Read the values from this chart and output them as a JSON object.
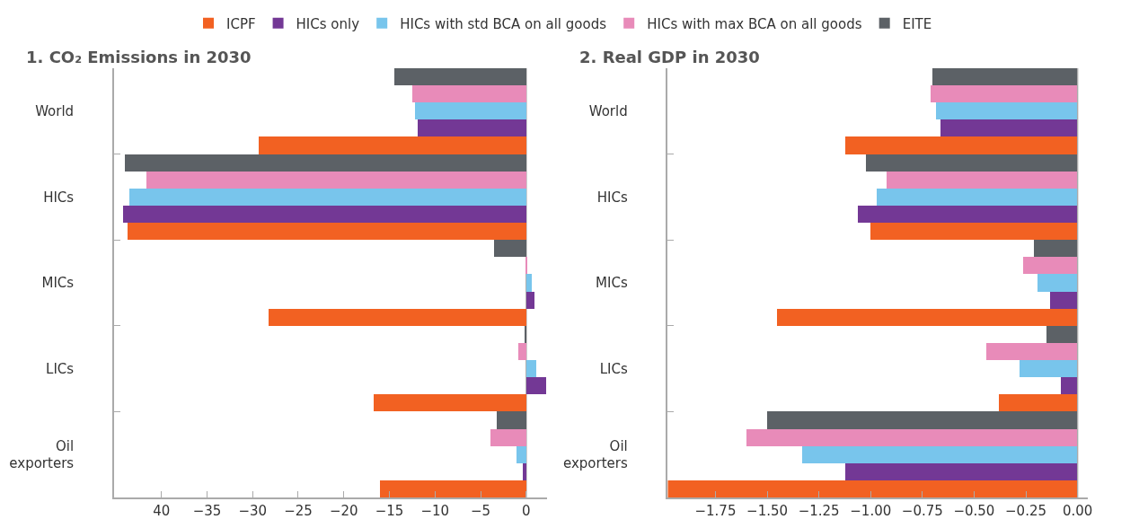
{
  "chart_data": [
    {
      "type": "bar",
      "orientation": "horizontal",
      "title": "1. CO₂ Emissions in 2030",
      "legend": "top",
      "categories": [
        "World",
        "HICs",
        "MICs",
        "LICs",
        "Oil exporters"
      ],
      "series": [
        {
          "name": "ICPF",
          "color": "#f26122",
          "values": [
            -29.3,
            -43.7,
            -28.3,
            -16.7,
            -16.0
          ]
        },
        {
          "name": "HICs only",
          "color": "#733895",
          "values": [
            -11.9,
            -44.2,
            0.9,
            2.2,
            -0.4
          ]
        },
        {
          "name": "HICs with std BCA on all goods",
          "color": "#78c5ec",
          "values": [
            -12.2,
            -43.5,
            0.6,
            1.1,
            -1.1
          ]
        },
        {
          "name": "HICs with max BCA on all goods",
          "color": "#e88bb9",
          "values": [
            -12.5,
            -41.7,
            0.1,
            -0.9,
            -3.9
          ]
        },
        {
          "name": "EITE",
          "color": "#5c6166",
          "values": [
            -14.5,
            -44.0,
            -3.5,
            -0.2,
            -3.2
          ]
        }
      ],
      "ref_lines": [
        {
          "axis": "x",
          "value": 0,
          "color": "#aaaaaa"
        }
      ],
      "xlim": [
        -45.2,
        2.3
      ],
      "xticks": [
        {
          "value": -40,
          "label": "40"
        },
        -35,
        -30,
        -25,
        -20,
        -15,
        -10,
        -5,
        0
      ]
    },
    {
      "type": "bar",
      "orientation": "horizontal",
      "title": "2. Real GDP in 2030",
      "categories": [
        "World",
        "HICs",
        "MICs",
        "LICs",
        "Oil exporters"
      ],
      "series": [
        {
          "color": "#f26122",
          "values": [
            -1.12,
            -1.0,
            -1.45,
            -0.38,
            -1.98
          ]
        },
        {
          "color": "#733895",
          "values": [
            -0.66,
            -1.06,
            -0.13,
            -0.08,
            -1.12
          ]
        },
        {
          "color": "#78c5ec",
          "values": [
            -0.68,
            -0.97,
            -0.19,
            -0.28,
            -1.33
          ]
        },
        {
          "color": "#e88bb9",
          "values": [
            -0.71,
            -0.92,
            -0.26,
            -0.44,
            -1.6
          ]
        },
        {
          "color": "#5c6166",
          "values": [
            -0.7,
            -1.02,
            -0.21,
            -0.15,
            -1.5
          ]
        }
      ],
      "ref_lines": [
        {
          "axis": "x",
          "value": 0,
          "color": "#aaaaaa"
        }
      ],
      "xlim": [
        -1.98,
        0.05
      ],
      "xticks": [
        {
          "value": -1.75,
          "label": "−1.75"
        },
        {
          "value": -1.5,
          "label": "−1.50"
        },
        {
          "value": -1.25,
          "label": "−1.25"
        },
        {
          "value": -1.0,
          "label": "−1.00"
        },
        {
          "value": -0.75,
          "label": "−0.75"
        },
        {
          "value": -0.5,
          "label": "−0.50"
        },
        {
          "value": -0.25,
          "label": "−0.25"
        },
        {
          "value": 0,
          "label": "0.00"
        }
      ]
    }
  ]
}
